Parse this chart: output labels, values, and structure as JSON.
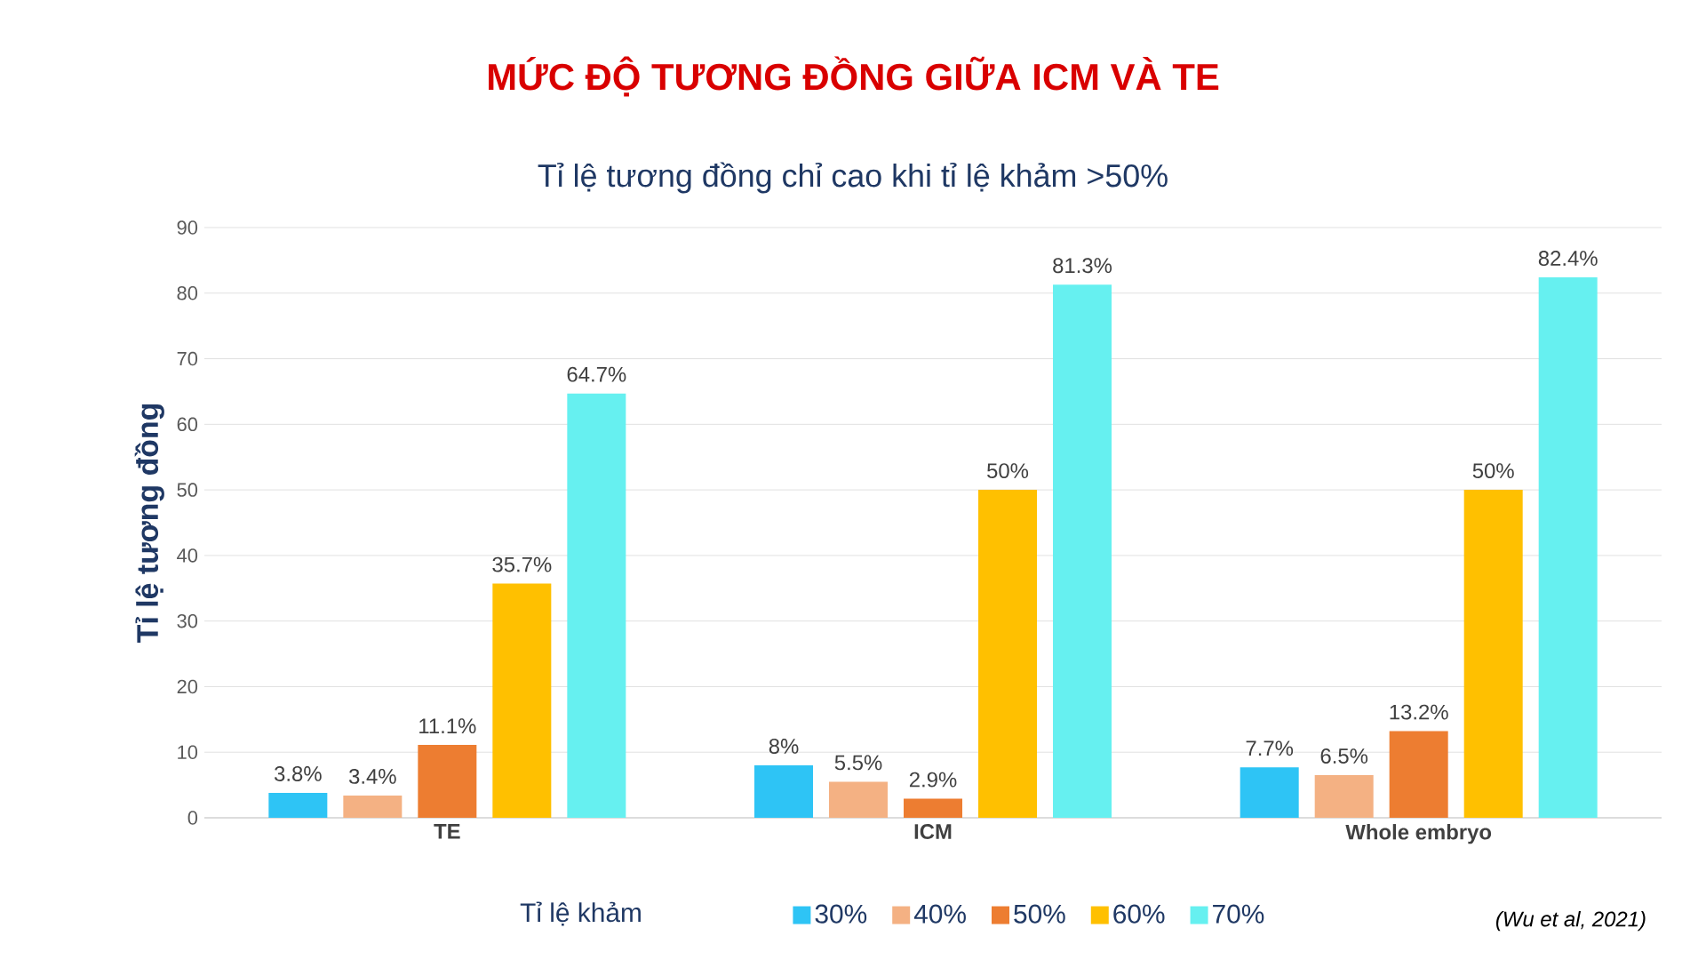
{
  "chart_data": {
    "type": "bar",
    "title": "MỨC ĐỘ TƯƠNG ĐỒNG GIỮA ICM VÀ TE",
    "subtitle": "Tỉ lệ tương đồng chỉ cao khi tỉ lệ khảm >50%",
    "ylabel": "Tỉ lệ tương đồng",
    "legend_title": "Tỉ lệ khảm",
    "categories": [
      "TE",
      "ICM",
      "Whole embryo"
    ],
    "series": [
      {
        "name": "30%",
        "color": "#2ec4f5",
        "values": [
          3.8,
          8,
          7.7
        ],
        "value_labels": [
          "3.8%",
          "8%",
          "7.7%"
        ]
      },
      {
        "name": "40%",
        "color": "#f4b183",
        "values": [
          3.4,
          5.5,
          6.5
        ],
        "value_labels": [
          "3.4%",
          "5.5%",
          "6.5%"
        ]
      },
      {
        "name": "50%",
        "color": "#ed7d31",
        "values": [
          11.1,
          2.9,
          13.2
        ],
        "value_labels": [
          "11.1%",
          "2.9%",
          "13.2%"
        ]
      },
      {
        "name": "60%",
        "color": "#ffc000",
        "values": [
          35.7,
          50,
          50
        ],
        "value_labels": [
          "35.7%",
          "50%",
          "50%"
        ]
      },
      {
        "name": "70%",
        "color": "#66f0f0",
        "values": [
          64.7,
          81.3,
          82.4
        ],
        "value_labels": [
          "64.7%",
          "81.3%",
          "82.4%"
        ]
      }
    ],
    "ylim": [
      0,
      90
    ],
    "yticks": [
      0,
      10,
      20,
      30,
      40,
      50,
      60,
      70,
      80,
      90
    ],
    "grid": "y",
    "legend": "bottom",
    "annotations": [
      "(Wu et al, 2021)"
    ]
  }
}
